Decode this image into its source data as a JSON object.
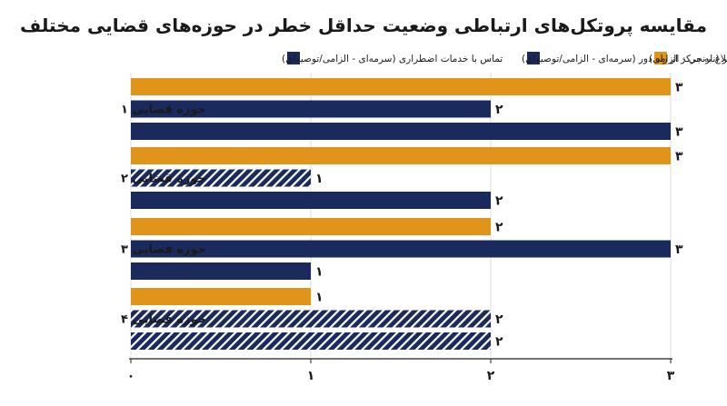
{
  "chart_data": {
    "type": "bar",
    "orientation": "horizontal",
    "title": "مقایسه پروتکل‌های ارتباطی وضعیت حداقل خطر در حوزه‌های قضایی مختلف",
    "categories": [
      "حوزه قضایی ۱",
      "حوزه قضایی ۲",
      "حوزه قضایی ۳",
      "حوزه قضایی ۴"
    ],
    "series": [
      {
        "name": "چراغ خطر (نارنجی - الزامی)",
        "color": "#E0941A",
        "values": [
          3,
          3,
          2,
          1
        ],
        "value_labels": [
          "۳",
          "۳",
          "۲",
          "۱"
        ],
        "hatched": [
          false,
          false,
          false,
          false
        ]
      },
      {
        "name": "اطلاع به مرکز از راه دور (سرمه‌ای - الزامی/توصیه‌ای)",
        "color": "#1B2A5C",
        "values": [
          2,
          1,
          3,
          2
        ],
        "value_labels": [
          "۲",
          "۱",
          "۳",
          "۲"
        ],
        "hatched": [
          false,
          true,
          false,
          true
        ]
      },
      {
        "name": "تماس با خدمات اضطراری (سرمه‌ای - الزامی/توصیه‌ای)",
        "color": "#1B2A5C",
        "values": [
          3,
          2,
          1,
          2
        ],
        "value_labels": [
          "۳",
          "۲",
          "۱",
          "۲"
        ],
        "hatched": [
          false,
          false,
          false,
          true
        ]
      }
    ],
    "x_ticks": [
      0,
      1,
      2,
      3
    ],
    "x_tick_labels": [
      "۰",
      "۱",
      "۲",
      "۳"
    ],
    "xlim": [
      0,
      3
    ],
    "xlabel": "",
    "ylabel": "",
    "grid": true,
    "legend_position": "top"
  }
}
